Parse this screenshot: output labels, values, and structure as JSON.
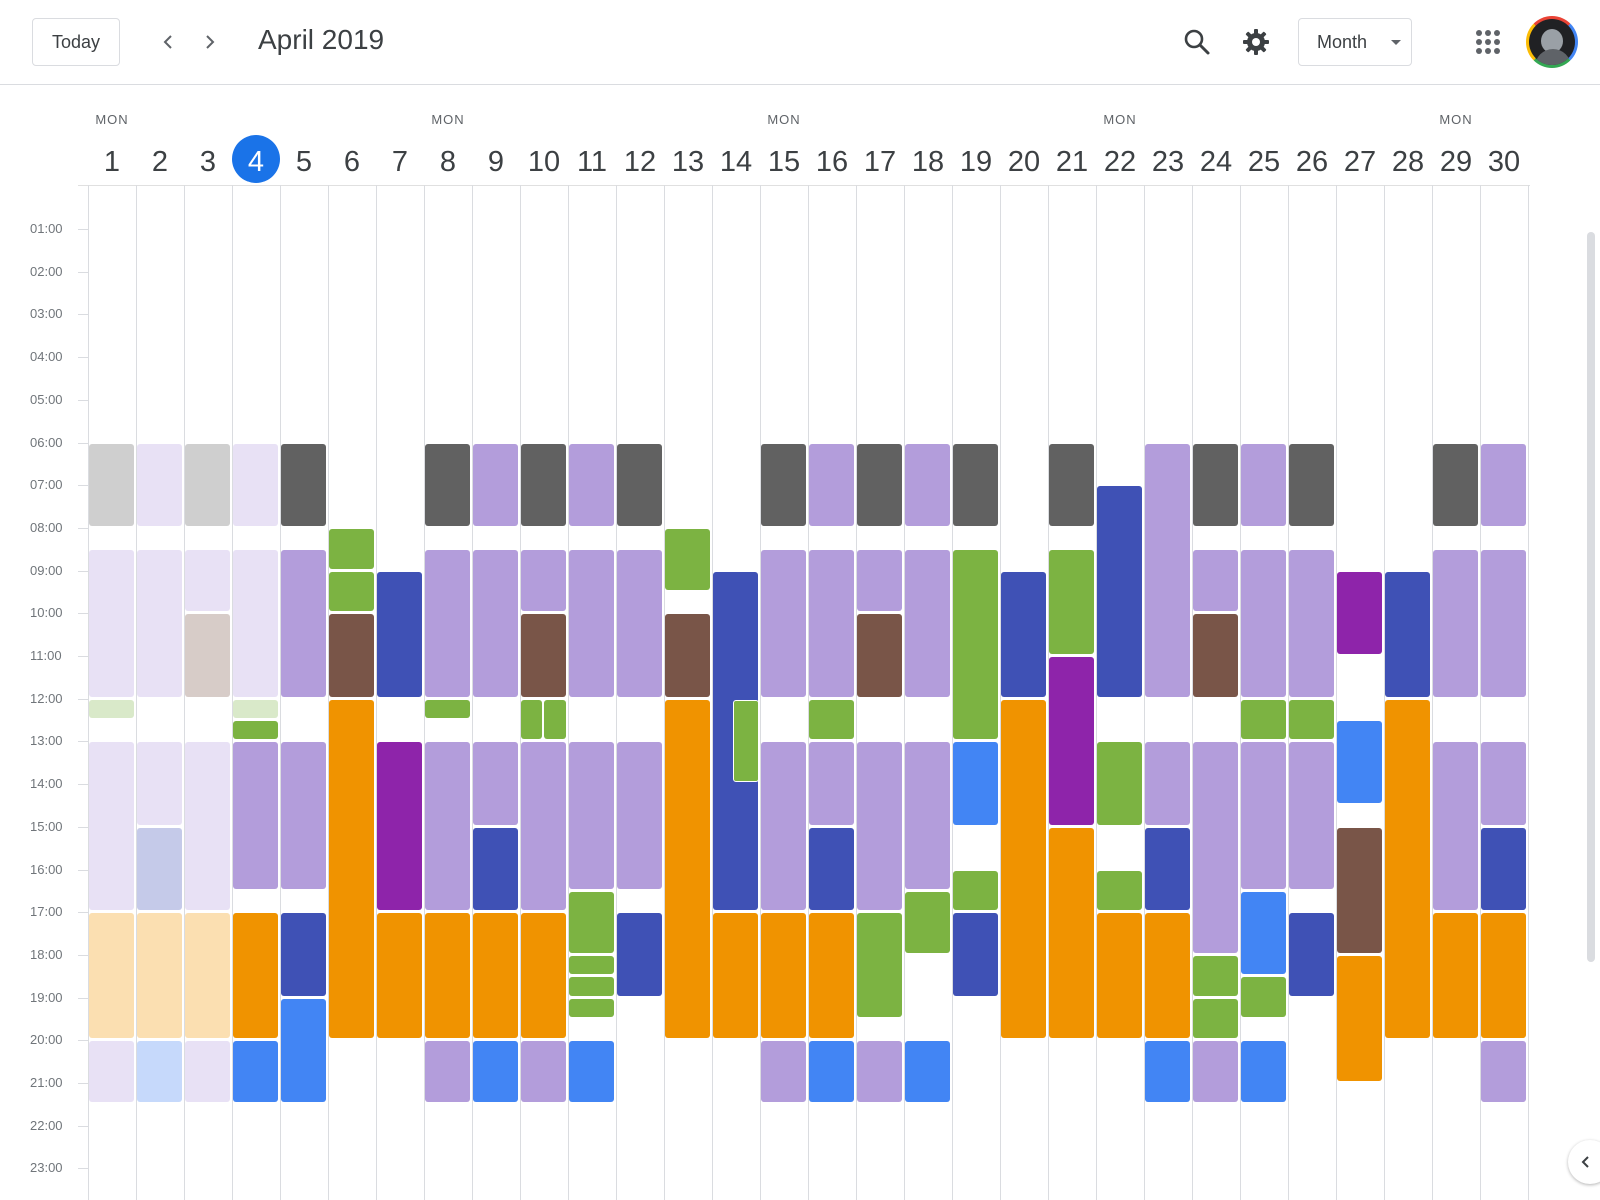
{
  "header": {
    "today_label": "Today",
    "title": "April 2019",
    "view_label": "Month"
  },
  "icons": {
    "prev": "chevron-left-icon",
    "next": "chevron-right-icon",
    "search": "search-icon",
    "settings": "gear-icon",
    "apps": "apps-grid-icon",
    "account": "avatar",
    "side_panel": "chevron-left-icon"
  },
  "colors": {
    "today_highlight": "#1a73e8",
    "dark_gray": "#616161",
    "light_gray": "#cfcfcf",
    "lavender": "#b39ddb",
    "light_lavender": "#e8e1f5",
    "green": "#7cb342",
    "light_green": "#d9e9c9",
    "brown": "#795548",
    "light_brown": "#d7ccc8",
    "indigo": "#3f51b5",
    "light_indigo": "#c5cae9",
    "purple": "#8e24aa",
    "orange": "#f09300",
    "light_orange": "#fbdfb1",
    "blue": "#4285f4",
    "light_blue": "#c6d9fb"
  },
  "days": [
    {
      "num": "1",
      "dow": "MON"
    },
    {
      "num": "2",
      "dow": ""
    },
    {
      "num": "3",
      "dow": ""
    },
    {
      "num": "4",
      "dow": "",
      "today": true
    },
    {
      "num": "5",
      "dow": ""
    },
    {
      "num": "6",
      "dow": ""
    },
    {
      "num": "7",
      "dow": ""
    },
    {
      "num": "8",
      "dow": "MON"
    },
    {
      "num": "9",
      "dow": ""
    },
    {
      "num": "10",
      "dow": ""
    },
    {
      "num": "11",
      "dow": ""
    },
    {
      "num": "12",
      "dow": ""
    },
    {
      "num": "13",
      "dow": ""
    },
    {
      "num": "14",
      "dow": ""
    },
    {
      "num": "15",
      "dow": "MON"
    },
    {
      "num": "16",
      "dow": ""
    },
    {
      "num": "17",
      "dow": ""
    },
    {
      "num": "18",
      "dow": ""
    },
    {
      "num": "19",
      "dow": ""
    },
    {
      "num": "20",
      "dow": ""
    },
    {
      "num": "21",
      "dow": ""
    },
    {
      "num": "22",
      "dow": "MON"
    },
    {
      "num": "23",
      "dow": ""
    },
    {
      "num": "24",
      "dow": ""
    },
    {
      "num": "25",
      "dow": ""
    },
    {
      "num": "26",
      "dow": ""
    },
    {
      "num": "27",
      "dow": ""
    },
    {
      "num": "28",
      "dow": ""
    },
    {
      "num": "29",
      "dow": "MON"
    },
    {
      "num": "30",
      "dow": ""
    }
  ],
  "hours": [
    "01:00",
    "02:00",
    "03:00",
    "04:00",
    "05:00",
    "06:00",
    "07:00",
    "08:00",
    "09:00",
    "10:00",
    "11:00",
    "12:00",
    "13:00",
    "14:00",
    "15:00",
    "16:00",
    "17:00",
    "18:00",
    "19:00",
    "20:00",
    "21:00",
    "22:00",
    "23:00"
  ],
  "events": [
    {
      "day": 1,
      "start": 6,
      "end": 8,
      "color": "light_gray"
    },
    {
      "day": 1,
      "start": 8.5,
      "end": 12,
      "color": "light_lavender"
    },
    {
      "day": 1,
      "start": 12,
      "end": 12.5,
      "color": "light_green"
    },
    {
      "day": 1,
      "start": 13,
      "end": 17,
      "color": "light_lavender"
    },
    {
      "day": 1,
      "start": 17,
      "end": 20,
      "color": "light_orange"
    },
    {
      "day": 1,
      "start": 20,
      "end": 21.5,
      "color": "light_lavender"
    },
    {
      "day": 2,
      "start": 6,
      "end": 8,
      "color": "light_lavender"
    },
    {
      "day": 2,
      "start": 8.5,
      "end": 12,
      "color": "light_lavender"
    },
    {
      "day": 2,
      "start": 13,
      "end": 15,
      "color": "light_lavender"
    },
    {
      "day": 2,
      "start": 15,
      "end": 17,
      "color": "light_indigo"
    },
    {
      "day": 2,
      "start": 17,
      "end": 20,
      "color": "light_orange"
    },
    {
      "day": 2,
      "start": 20,
      "end": 21.5,
      "color": "light_blue"
    },
    {
      "day": 3,
      "start": 6,
      "end": 8,
      "color": "light_gray"
    },
    {
      "day": 3,
      "start": 8.5,
      "end": 10,
      "color": "light_lavender"
    },
    {
      "day": 3,
      "start": 10,
      "end": 12,
      "color": "light_brown"
    },
    {
      "day": 3,
      "start": 13,
      "end": 17,
      "color": "light_lavender"
    },
    {
      "day": 3,
      "start": 17,
      "end": 20,
      "color": "light_orange"
    },
    {
      "day": 3,
      "start": 20,
      "end": 21.5,
      "color": "light_lavender"
    },
    {
      "day": 4,
      "start": 6,
      "end": 8,
      "color": "light_lavender"
    },
    {
      "day": 4,
      "start": 8.5,
      "end": 12,
      "color": "light_lavender"
    },
    {
      "day": 4,
      "start": 12,
      "end": 12.5,
      "color": "light_green"
    },
    {
      "day": 4,
      "start": 12.5,
      "end": 13,
      "color": "green"
    },
    {
      "day": 4,
      "start": 13,
      "end": 16.5,
      "color": "lavender"
    },
    {
      "day": 4,
      "start": 17,
      "end": 20,
      "color": "orange"
    },
    {
      "day": 4,
      "start": 20,
      "end": 21.5,
      "color": "blue"
    },
    {
      "day": 5,
      "start": 6,
      "end": 8,
      "color": "dark_gray"
    },
    {
      "day": 5,
      "start": 8.5,
      "end": 12,
      "color": "lavender"
    },
    {
      "day": 5,
      "start": 13,
      "end": 16.5,
      "color": "lavender"
    },
    {
      "day": 5,
      "start": 17,
      "end": 19,
      "color": "indigo"
    },
    {
      "day": 5,
      "start": 19,
      "end": 21.5,
      "color": "blue"
    },
    {
      "day": 6,
      "start": 8,
      "end": 9,
      "color": "green"
    },
    {
      "day": 6,
      "start": 9,
      "end": 10,
      "color": "green"
    },
    {
      "day": 6,
      "start": 10,
      "end": 12,
      "color": "brown"
    },
    {
      "day": 6,
      "start": 12,
      "end": 20,
      "color": "orange"
    },
    {
      "day": 7,
      "start": 9,
      "end": 12,
      "color": "indigo"
    },
    {
      "day": 7,
      "start": 13,
      "end": 17,
      "color": "purple"
    },
    {
      "day": 7,
      "start": 17,
      "end": 20,
      "color": "orange"
    },
    {
      "day": 8,
      "start": 6,
      "end": 8,
      "color": "dark_gray"
    },
    {
      "day": 8,
      "start": 8.5,
      "end": 12,
      "color": "lavender"
    },
    {
      "day": 8,
      "start": 12,
      "end": 12.5,
      "color": "green"
    },
    {
      "day": 8,
      "start": 13,
      "end": 17,
      "color": "lavender"
    },
    {
      "day": 8,
      "start": 17,
      "end": 20,
      "color": "orange"
    },
    {
      "day": 8,
      "start": 20,
      "end": 21.5,
      "color": "lavender"
    },
    {
      "day": 9,
      "start": 6,
      "end": 8,
      "color": "lavender"
    },
    {
      "day": 9,
      "start": 8.5,
      "end": 12,
      "color": "lavender"
    },
    {
      "day": 9,
      "start": 13,
      "end": 15,
      "color": "lavender"
    },
    {
      "day": 9,
      "start": 15,
      "end": 17,
      "color": "indigo"
    },
    {
      "day": 9,
      "start": 17,
      "end": 20,
      "color": "orange"
    },
    {
      "day": 9,
      "start": 20,
      "end": 21.5,
      "color": "blue"
    },
    {
      "day": 10,
      "start": 6,
      "end": 8,
      "color": "dark_gray"
    },
    {
      "day": 10,
      "start": 8.5,
      "end": 10,
      "color": "lavender"
    },
    {
      "day": 10,
      "start": 10,
      "end": 12,
      "color": "brown"
    },
    {
      "day": 10,
      "start": 12,
      "end": 13,
      "color": "green",
      "half": "left"
    },
    {
      "day": 10,
      "start": 12,
      "end": 13,
      "color": "green",
      "half": "right"
    },
    {
      "day": 10,
      "start": 13,
      "end": 17,
      "color": "lavender"
    },
    {
      "day": 10,
      "start": 17,
      "end": 20,
      "color": "orange"
    },
    {
      "day": 10,
      "start": 20,
      "end": 21.5,
      "color": "lavender"
    },
    {
      "day": 11,
      "start": 6,
      "end": 8,
      "color": "lavender"
    },
    {
      "day": 11,
      "start": 8.5,
      "end": 12,
      "color": "lavender"
    },
    {
      "day": 11,
      "start": 13,
      "end": 16.5,
      "color": "lavender"
    },
    {
      "day": 11,
      "start": 16.5,
      "end": 18,
      "color": "green"
    },
    {
      "day": 11,
      "start": 18,
      "end": 18.5,
      "color": "green"
    },
    {
      "day": 11,
      "start": 18.5,
      "end": 19,
      "color": "green"
    },
    {
      "day": 11,
      "start": 19,
      "end": 19.5,
      "color": "green"
    },
    {
      "day": 11,
      "start": 20,
      "end": 21.5,
      "color": "blue"
    },
    {
      "day": 12,
      "start": 6,
      "end": 8,
      "color": "dark_gray"
    },
    {
      "day": 12,
      "start": 8.5,
      "end": 12,
      "color": "lavender"
    },
    {
      "day": 12,
      "start": 13,
      "end": 16.5,
      "color": "lavender"
    },
    {
      "day": 12,
      "start": 17,
      "end": 19,
      "color": "indigo"
    },
    {
      "day": 13,
      "start": 8,
      "end": 9.5,
      "color": "green"
    },
    {
      "day": 13,
      "start": 10,
      "end": 12,
      "color": "brown"
    },
    {
      "day": 13,
      "start": 12,
      "end": 20,
      "color": "orange"
    },
    {
      "day": 14,
      "start": 9,
      "end": 17,
      "color": "indigo"
    },
    {
      "day": 14,
      "start": 12,
      "end": 14,
      "color": "green",
      "overlay": true
    },
    {
      "day": 14,
      "start": 17,
      "end": 20,
      "color": "orange"
    },
    {
      "day": 15,
      "start": 6,
      "end": 8,
      "color": "dark_gray"
    },
    {
      "day": 15,
      "start": 8.5,
      "end": 12,
      "color": "lavender"
    },
    {
      "day": 15,
      "start": 13,
      "end": 17,
      "color": "lavender"
    },
    {
      "day": 15,
      "start": 17,
      "end": 20,
      "color": "orange"
    },
    {
      "day": 15,
      "start": 20,
      "end": 21.5,
      "color": "lavender"
    },
    {
      "day": 16,
      "start": 6,
      "end": 8,
      "color": "lavender"
    },
    {
      "day": 16,
      "start": 8.5,
      "end": 12,
      "color": "lavender"
    },
    {
      "day": 16,
      "start": 12,
      "end": 13,
      "color": "green"
    },
    {
      "day": 16,
      "start": 13,
      "end": 15,
      "color": "lavender"
    },
    {
      "day": 16,
      "start": 15,
      "end": 17,
      "color": "indigo"
    },
    {
      "day": 16,
      "start": 17,
      "end": 20,
      "color": "orange"
    },
    {
      "day": 16,
      "start": 20,
      "end": 21.5,
      "color": "blue"
    },
    {
      "day": 17,
      "start": 6,
      "end": 8,
      "color": "dark_gray"
    },
    {
      "day": 17,
      "start": 8.5,
      "end": 10,
      "color": "lavender"
    },
    {
      "day": 17,
      "start": 10,
      "end": 12,
      "color": "brown"
    },
    {
      "day": 17,
      "start": 13,
      "end": 17,
      "color": "lavender"
    },
    {
      "day": 17,
      "start": 17,
      "end": 19.5,
      "color": "green"
    },
    {
      "day": 17,
      "start": 20,
      "end": 21.5,
      "color": "lavender"
    },
    {
      "day": 18,
      "start": 6,
      "end": 8,
      "color": "lavender"
    },
    {
      "day": 18,
      "start": 8.5,
      "end": 12,
      "color": "lavender"
    },
    {
      "day": 18,
      "start": 13,
      "end": 16.5,
      "color": "lavender"
    },
    {
      "day": 18,
      "start": 16.5,
      "end": 18,
      "color": "green"
    },
    {
      "day": 18,
      "start": 20,
      "end": 21.5,
      "color": "blue"
    },
    {
      "day": 19,
      "start": 6,
      "end": 8,
      "color": "dark_gray"
    },
    {
      "day": 19,
      "start": 8.5,
      "end": 13,
      "color": "green"
    },
    {
      "day": 19,
      "start": 13,
      "end": 15,
      "color": "blue"
    },
    {
      "day": 19,
      "start": 16,
      "end": 17,
      "color": "green"
    },
    {
      "day": 19,
      "start": 17,
      "end": 19,
      "color": "indigo"
    },
    {
      "day": 20,
      "start": 9,
      "end": 12,
      "color": "indigo"
    },
    {
      "day": 20,
      "start": 12,
      "end": 20,
      "color": "orange"
    },
    {
      "day": 21,
      "start": 6,
      "end": 8,
      "color": "dark_gray"
    },
    {
      "day": 21,
      "start": 8.5,
      "end": 11,
      "color": "green"
    },
    {
      "day": 21,
      "start": 11,
      "end": 15,
      "color": "purple"
    },
    {
      "day": 21,
      "start": 15,
      "end": 20,
      "color": "orange"
    },
    {
      "day": 22,
      "start": 7,
      "end": 12,
      "color": "indigo"
    },
    {
      "day": 22,
      "start": 13,
      "end": 15,
      "color": "green"
    },
    {
      "day": 22,
      "start": 16,
      "end": 17,
      "color": "green"
    },
    {
      "day": 22,
      "start": 17,
      "end": 20,
      "color": "orange"
    },
    {
      "day": 23,
      "start": 6,
      "end": 12,
      "color": "lavender"
    },
    {
      "day": 23,
      "start": 13,
      "end": 15,
      "color": "lavender"
    },
    {
      "day": 23,
      "start": 15,
      "end": 17,
      "color": "indigo"
    },
    {
      "day": 23,
      "start": 17,
      "end": 20,
      "color": "orange"
    },
    {
      "day": 23,
      "start": 20,
      "end": 21.5,
      "color": "blue"
    },
    {
      "day": 24,
      "start": 6,
      "end": 8,
      "color": "dark_gray"
    },
    {
      "day": 24,
      "start": 8.5,
      "end": 10,
      "color": "lavender"
    },
    {
      "day": 24,
      "start": 10,
      "end": 12,
      "color": "brown"
    },
    {
      "day": 24,
      "start": 13,
      "end": 18,
      "color": "lavender"
    },
    {
      "day": 24,
      "start": 18,
      "end": 19,
      "color": "green"
    },
    {
      "day": 24,
      "start": 19,
      "end": 20,
      "color": "green"
    },
    {
      "day": 24,
      "start": 20,
      "end": 21.5,
      "color": "lavender"
    },
    {
      "day": 25,
      "start": 6,
      "end": 8,
      "color": "lavender"
    },
    {
      "day": 25,
      "start": 8.5,
      "end": 12,
      "color": "lavender"
    },
    {
      "day": 25,
      "start": 12,
      "end": 13,
      "color": "green"
    },
    {
      "day": 25,
      "start": 13,
      "end": 16.5,
      "color": "lavender"
    },
    {
      "day": 25,
      "start": 16.5,
      "end": 18.5,
      "color": "blue"
    },
    {
      "day": 25,
      "start": 18.5,
      "end": 19.5,
      "color": "green"
    },
    {
      "day": 25,
      "start": 20,
      "end": 21.5,
      "color": "blue"
    },
    {
      "day": 26,
      "start": 6,
      "end": 8,
      "color": "dark_gray"
    },
    {
      "day": 26,
      "start": 8.5,
      "end": 12,
      "color": "lavender"
    },
    {
      "day": 26,
      "start": 12,
      "end": 13,
      "color": "green"
    },
    {
      "day": 26,
      "start": 13,
      "end": 16.5,
      "color": "lavender"
    },
    {
      "day": 26,
      "start": 17,
      "end": 19,
      "color": "indigo"
    },
    {
      "day": 27,
      "start": 9,
      "end": 11,
      "color": "purple"
    },
    {
      "day": 27,
      "start": 12.5,
      "end": 14.5,
      "color": "blue"
    },
    {
      "day": 27,
      "start": 15,
      "end": 18,
      "color": "brown"
    },
    {
      "day": 27,
      "start": 18,
      "end": 21,
      "color": "orange"
    },
    {
      "day": 28,
      "start": 9,
      "end": 12,
      "color": "indigo"
    },
    {
      "day": 28,
      "start": 12,
      "end": 20,
      "color": "orange"
    },
    {
      "day": 29,
      "start": 6,
      "end": 8,
      "color": "dark_gray"
    },
    {
      "day": 29,
      "start": 8.5,
      "end": 12,
      "color": "lavender"
    },
    {
      "day": 29,
      "start": 13,
      "end": 17,
      "color": "lavender"
    },
    {
      "day": 29,
      "start": 17,
      "end": 20,
      "color": "orange"
    },
    {
      "day": 30,
      "start": 6,
      "end": 8,
      "color": "lavender"
    },
    {
      "day": 30,
      "start": 8.5,
      "end": 12,
      "color": "lavender"
    },
    {
      "day": 30,
      "start": 13,
      "end": 15,
      "color": "lavender"
    },
    {
      "day": 30,
      "start": 15,
      "end": 17,
      "color": "indigo"
    },
    {
      "day": 30,
      "start": 17,
      "end": 20,
      "color": "orange"
    },
    {
      "day": 30,
      "start": 20,
      "end": 21.5,
      "color": "lavender"
    }
  ]
}
